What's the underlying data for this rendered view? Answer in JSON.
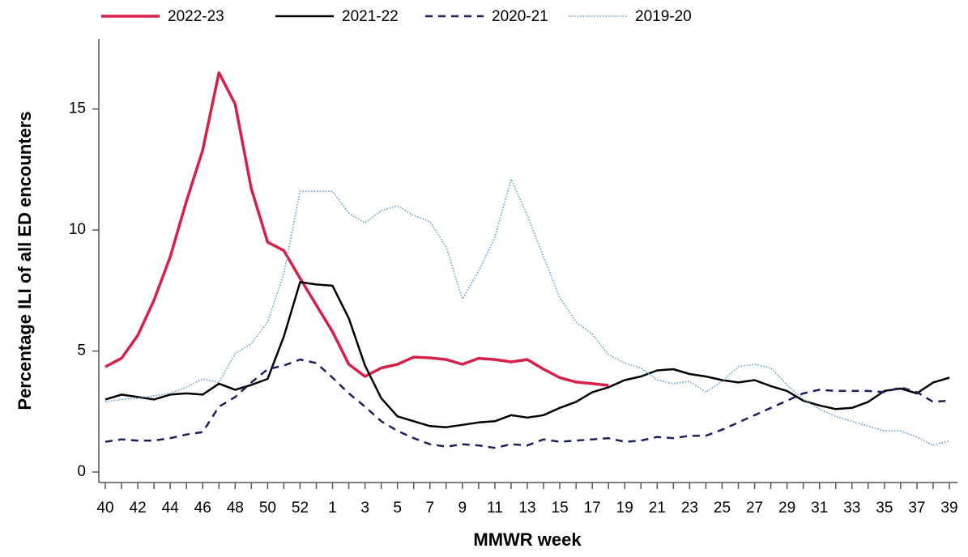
{
  "chart_data": {
    "type": "line",
    "x_label": "MMWR week",
    "y_label": "Percentage ILI of all ED encounters",
    "categories": [
      "40",
      null,
      "42",
      null,
      "44",
      null,
      "46",
      null,
      "48",
      null,
      "50",
      null,
      "52",
      null,
      "1",
      null,
      "3",
      null,
      "5",
      null,
      "7",
      null,
      "9",
      null,
      "11",
      null,
      "13",
      null,
      "15",
      null,
      "17",
      null,
      "19",
      null,
      "21",
      null,
      "23",
      null,
      "25",
      null,
      "27",
      null,
      "29",
      null,
      "31",
      null,
      "33",
      null,
      "35",
      null,
      "37",
      null,
      "39"
    ],
    "ylim": [
      -0.4,
      17.9
    ],
    "yticks": [
      0,
      5,
      10,
      15
    ],
    "series": [
      {
        "name": "2022-23",
        "color": "#d6204a",
        "dash": "solid",
        "values": [
          4.35,
          4.7,
          5.65,
          7.1,
          8.9,
          11.2,
          13.3,
          16.5,
          15.2,
          11.7,
          9.5,
          9.15,
          8.0,
          6.9,
          5.8,
          4.45,
          3.95,
          4.3,
          4.45,
          4.75,
          4.72,
          4.65,
          4.45,
          4.7,
          4.65,
          4.55,
          4.65,
          4.25,
          3.9,
          3.72,
          3.65,
          3.58,
          null,
          null,
          null,
          null,
          null,
          null,
          null,
          null,
          null,
          null,
          null,
          null,
          null,
          null,
          null,
          null,
          null,
          null,
          null,
          null,
          null
        ]
      },
      {
        "name": "2021-22",
        "color": "#000000",
        "dash": "solid",
        "values": [
          3.0,
          3.2,
          3.1,
          3.0,
          3.2,
          3.25,
          3.2,
          3.65,
          3.4,
          3.6,
          3.85,
          5.6,
          7.85,
          7.75,
          7.7,
          6.35,
          4.4,
          3.05,
          2.3,
          2.1,
          1.9,
          1.85,
          1.95,
          2.05,
          2.1,
          2.35,
          2.25,
          2.35,
          2.65,
          2.9,
          3.3,
          3.5,
          3.8,
          3.95,
          4.2,
          4.25,
          4.05,
          3.95,
          3.8,
          3.7,
          3.8,
          3.55,
          3.35,
          2.95,
          2.75,
          2.6,
          2.65,
          2.9,
          3.35,
          3.45,
          3.25,
          3.7,
          3.9
        ]
      },
      {
        "name": "2020-21",
        "color": "#1c1f5e",
        "dash": "dashed",
        "values": [
          1.25,
          1.35,
          1.3,
          1.3,
          1.4,
          1.55,
          1.65,
          2.7,
          3.1,
          3.7,
          4.25,
          4.4,
          4.65,
          4.5,
          3.9,
          3.25,
          2.7,
          2.1,
          1.7,
          1.4,
          1.15,
          1.05,
          1.15,
          1.1,
          1.0,
          1.15,
          1.1,
          1.35,
          1.25,
          1.3,
          1.35,
          1.4,
          1.25,
          1.3,
          1.45,
          1.4,
          1.5,
          1.5,
          1.75,
          2.05,
          2.35,
          2.65,
          2.95,
          3.25,
          3.4,
          3.35,
          3.35,
          3.35,
          3.3,
          3.5,
          3.3,
          2.9,
          2.95
        ]
      },
      {
        "name": "2019-20",
        "color": "#5b9bd5",
        "dash": "dotted",
        "values": [
          2.9,
          3.0,
          3.05,
          3.15,
          3.25,
          3.5,
          3.85,
          3.7,
          4.9,
          5.3,
          6.2,
          8.2,
          11.6,
          11.6,
          11.6,
          10.7,
          10.3,
          10.8,
          11.0,
          10.6,
          10.35,
          9.3,
          7.15,
          8.3,
          9.7,
          12.1,
          10.6,
          8.9,
          7.2,
          6.2,
          5.7,
          4.85,
          4.5,
          4.3,
          3.8,
          3.65,
          3.75,
          3.3,
          3.75,
          4.35,
          4.45,
          4.3,
          3.6,
          3.0,
          2.6,
          2.3,
          2.1,
          1.9,
          1.7,
          1.7,
          1.45,
          1.1,
          1.3
        ]
      }
    ]
  }
}
